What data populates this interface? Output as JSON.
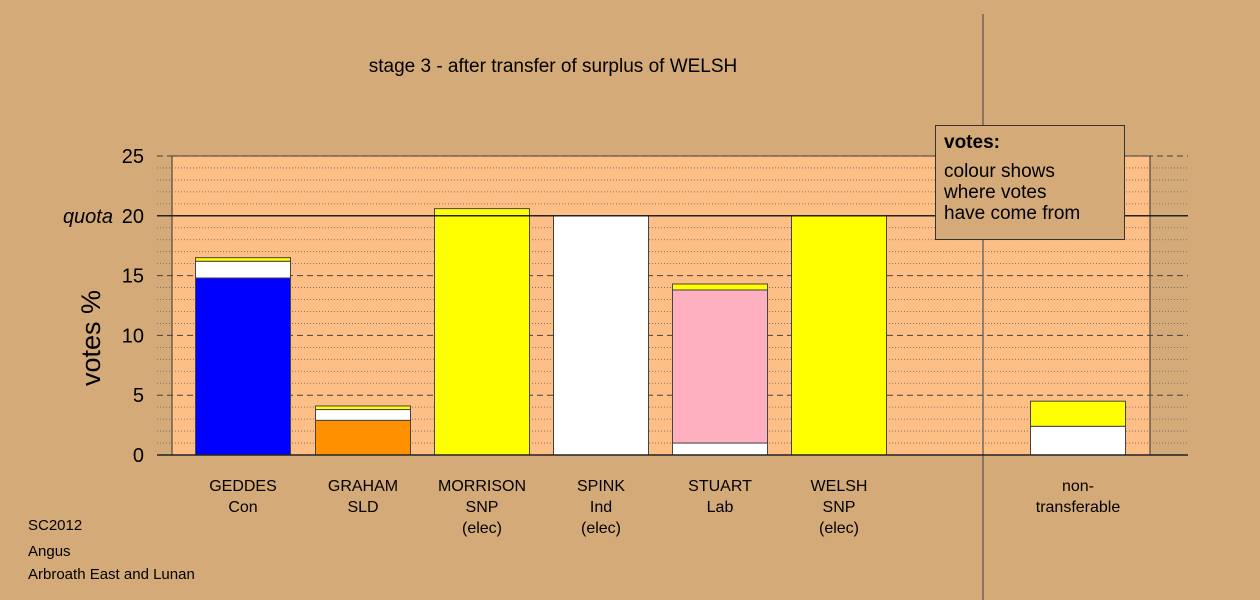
{
  "footer": {
    "line1": "SC2012",
    "line2": "Angus",
    "line3": "Arbroath East and Lunan"
  },
  "legend": {
    "title": "votes:",
    "line1": "colour shows",
    "line2": "where votes",
    "line3": "have come from"
  },
  "colors": {
    "background": "#d4aa78",
    "plot_area": "#fdbf85",
    "Con": "#0000ff",
    "SLD": "#ff9000",
    "SNP": "#ffff00",
    "Ind": "#ffffff",
    "Lab": "#ffb0c0"
  },
  "chart_data": {
    "type": "bar",
    "stacked": true,
    "title": "stage 3 - after transfer of surplus of WELSH",
    "ylabel": "votes %",
    "ylim": [
      0,
      25
    ],
    "yticks": [
      0,
      5,
      10,
      15,
      20,
      25
    ],
    "quota": 20,
    "quota_label": "quota",
    "grid": true,
    "categories": [
      {
        "lines": [
          "GEDDES",
          "Con"
        ]
      },
      {
        "lines": [
          "GRAHAM",
          "SLD"
        ]
      },
      {
        "lines": [
          "MORRISON",
          "SNP",
          "(elec)"
        ]
      },
      {
        "lines": [
          "SPINK",
          "Ind",
          "(elec)"
        ]
      },
      {
        "lines": [
          "STUART",
          "Lab"
        ]
      },
      {
        "lines": [
          "WELSH",
          "SNP",
          "(elec)"
        ]
      },
      {
        "lines": [
          "non-",
          "transferable"
        ]
      }
    ],
    "series": [
      {
        "name": "GEDDES",
        "color": "#0000ff",
        "values": [
          14.8,
          0,
          0,
          0,
          0,
          0,
          0
        ]
      },
      {
        "name": "GRAHAM",
        "color": "#ff9000",
        "values": [
          0,
          2.9,
          0,
          0,
          0,
          0,
          0
        ]
      },
      {
        "name": "MORRISON",
        "color": "#ffff00",
        "values": [
          0,
          0,
          20.6,
          0,
          0,
          0,
          0
        ]
      },
      {
        "name": "SPINK",
        "color": "#ffffff",
        "values": [
          1.4,
          0.9,
          0,
          20.0,
          1.0,
          0,
          2.4
        ]
      },
      {
        "name": "STUART",
        "color": "#ffb0c0",
        "values": [
          0,
          0,
          0,
          0,
          12.8,
          0,
          0
        ]
      },
      {
        "name": "WELSH",
        "color": "#ffff00",
        "values": [
          0.3,
          0.3,
          0,
          0,
          0.5,
          20.0,
          2.1
        ]
      }
    ]
  }
}
